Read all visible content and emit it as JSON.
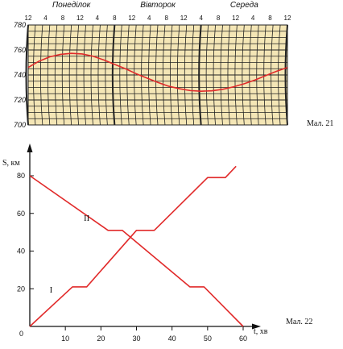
{
  "chart_data": [
    {
      "type": "line",
      "groups": [
        "Понеділок",
        "Вівторок",
        "Середа"
      ],
      "hour_ticks": [
        "12",
        "4",
        "8",
        "12",
        "4",
        "8",
        "12",
        "4",
        "8",
        "12",
        "4",
        "8",
        "12",
        "4",
        "8",
        "12"
      ],
      "x_hours": [
        0,
        72
      ],
      "y_ticks": [
        "700",
        "720",
        "740",
        "760",
        "780"
      ],
      "ylim": [
        700,
        780
      ],
      "series": [
        {
          "x": [
            0,
            3,
            6,
            9,
            12,
            15,
            18,
            21,
            24,
            27,
            30,
            33,
            36,
            39,
            42,
            45,
            48,
            51,
            54,
            57,
            60,
            63,
            66,
            69,
            72
          ],
          "values": [
            746,
            751,
            754.5,
            756.5,
            757.3,
            756.8,
            755,
            752,
            748.5,
            745,
            741,
            737.5,
            734,
            731,
            729,
            727.5,
            727,
            727.3,
            728.5,
            730.5,
            733,
            736,
            739.5,
            743,
            746
          ],
          "color": "#e12a2a"
        }
      ],
      "caption": "Мал. 21"
    },
    {
      "type": "line",
      "x_ticks": [
        "10",
        "20",
        "30",
        "40",
        "50",
        "60"
      ],
      "origin_label": "0",
      "y_ticks": [
        "20",
        "40",
        "60",
        "80"
      ],
      "xlim": [
        0,
        60
      ],
      "ylim": [
        0,
        80
      ],
      "xlabel": "t, хв",
      "ylabel": "S, км",
      "series": [
        {
          "name": "I",
          "x": [
            0,
            12,
            16,
            30,
            35,
            50,
            55,
            58
          ],
          "values": [
            0,
            21,
            21,
            51,
            51,
            79,
            79,
            85
          ],
          "color": "#e12a2a"
        },
        {
          "name": "II",
          "x": [
            0,
            22,
            26,
            45,
            49,
            60
          ],
          "values": [
            80,
            51,
            51,
            21,
            21,
            0
          ],
          "color": "#e12a2a"
        }
      ],
      "caption": "Мал. 22"
    }
  ]
}
